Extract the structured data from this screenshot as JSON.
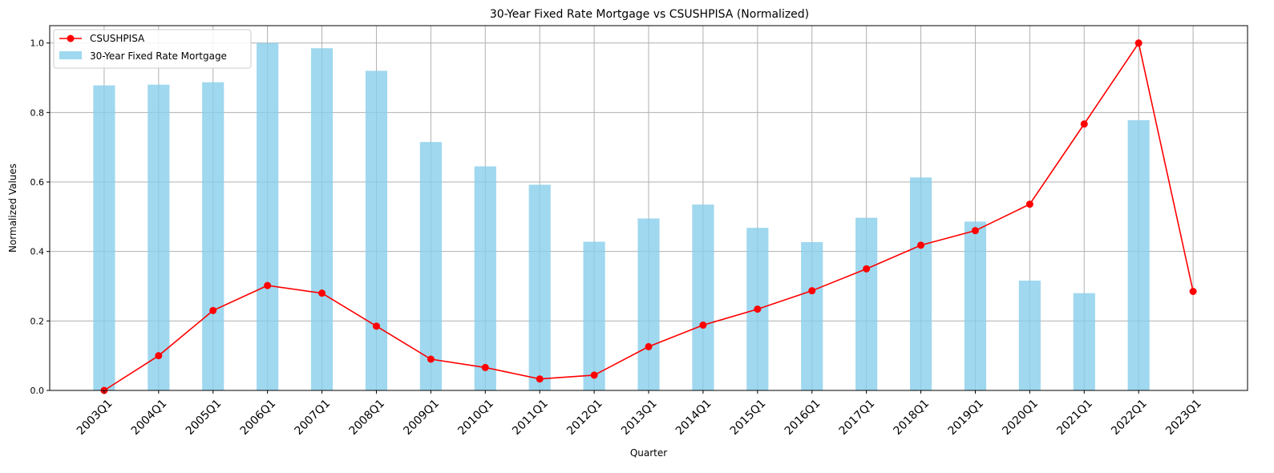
{
  "chart_data": {
    "type": "bar",
    "title": "30-Year Fixed Rate Mortgage vs CSUSHPISA (Normalized)",
    "xlabel": "Quarter",
    "ylabel": "Normalized Values",
    "ylim": [
      0,
      1.05
    ],
    "yticks": [
      "0.0",
      "0.2",
      "0.4",
      "0.6",
      "0.8",
      "1.0"
    ],
    "grid": true,
    "legend_position": "top-left",
    "categories": [
      "2003Q1",
      "2004Q1",
      "2005Q1",
      "2006Q1",
      "2007Q1",
      "2008Q1",
      "2009Q1",
      "2010Q1",
      "2011Q1",
      "2012Q1",
      "2013Q1",
      "2014Q1",
      "2015Q1",
      "2016Q1",
      "2017Q1",
      "2018Q1",
      "2019Q1",
      "2020Q1",
      "2021Q1",
      "2022Q1",
      "2023Q1"
    ],
    "series": [
      {
        "name": "CSUSHPISA",
        "kind": "line",
        "color": "#ff0000",
        "values": [
          0.0,
          0.1,
          0.23,
          0.302,
          0.28,
          0.185,
          0.09,
          0.066,
          0.033,
          0.044,
          0.126,
          0.188,
          0.234,
          0.287,
          0.35,
          0.418,
          0.46,
          0.536,
          0.767,
          1.0,
          0.285
        ]
      },
      {
        "name": "30-Year Fixed Rate Mortgage",
        "kind": "bar",
        "color": "#87ceeb",
        "values": [
          0.878,
          0.88,
          0.887,
          1.0,
          0.985,
          0.92,
          0.715,
          0.645,
          0.592,
          0.428,
          0.495,
          0.535,
          0.468,
          0.427,
          0.497,
          0.613,
          0.486,
          0.316,
          0.28,
          0.778,
          null
        ]
      }
    ]
  }
}
